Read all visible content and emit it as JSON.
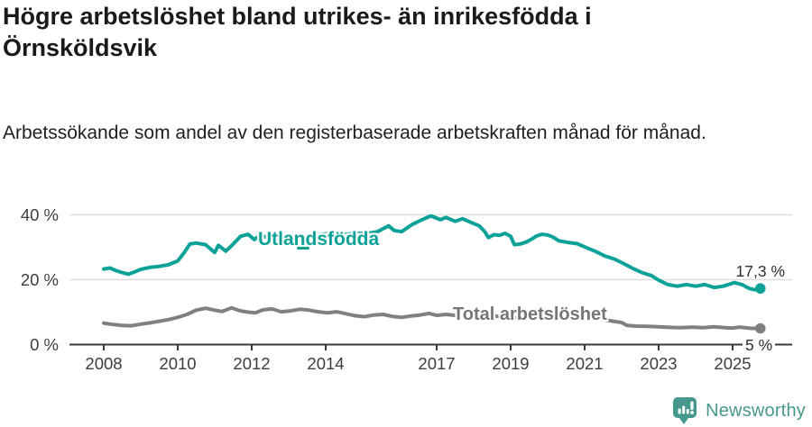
{
  "header": {
    "title": "Högre arbetslöshet bland utrikes- än inrikesfödda i Örnsköldsvik",
    "subtitle": "Arbetssökande som andel av den registerbaserade arbetskraften månad för månad."
  },
  "footer": {
    "brand": "Newsworthy"
  },
  "colors": {
    "foreign_line": "#0da298",
    "total_line": "#808080",
    "total_label_text": "#757575",
    "value_label_text": "#2f2f2f",
    "grid_line": "#dedede",
    "axis_line": "#3a3a3a",
    "axis_text": "#3d3d3d",
    "brand_teal": "#47988c",
    "title_text": "#1a1a1a"
  },
  "chart_data": {
    "type": "line",
    "title": "Högre arbetslöshet bland utrikes- än inrikesfödda i Örnsköldsvik",
    "subtitle": "Arbetssökande som andel av den registerbaserade arbetskraften månad för månad.",
    "xlabel": "",
    "ylabel": "",
    "xlim": [
      2007.1,
      2026.9
    ],
    "ylim": [
      0,
      44
    ],
    "grid": "horizontal",
    "legend_position": "inline-labels",
    "x_ticks": [
      2008,
      2010,
      2012,
      2014,
      2017,
      2019,
      2021,
      2023,
      2025
    ],
    "y_ticks": [
      {
        "value": 0,
        "label": "0 %"
      },
      {
        "value": 20,
        "label": "20 %"
      },
      {
        "value": 40,
        "label": "40 %"
      }
    ],
    "series": [
      {
        "name": "Utlandsfödda",
        "end_label": "17,3 %",
        "end_value": 17.3,
        "color_key": "foreign_line",
        "points": [
          [
            2008.0,
            23.3
          ],
          [
            2008.17,
            23.6
          ],
          [
            2008.33,
            22.8
          ],
          [
            2008.5,
            22.2
          ],
          [
            2008.67,
            21.7
          ],
          [
            2008.83,
            22.4
          ],
          [
            2009.0,
            23.2
          ],
          [
            2009.25,
            23.8
          ],
          [
            2009.5,
            24.1
          ],
          [
            2009.75,
            24.6
          ],
          [
            2010.0,
            25.8
          ],
          [
            2010.17,
            28.3
          ],
          [
            2010.33,
            31.0
          ],
          [
            2010.5,
            31.3
          ],
          [
            2010.75,
            30.8
          ],
          [
            2011.0,
            28.4
          ],
          [
            2011.1,
            30.6
          ],
          [
            2011.3,
            28.8
          ],
          [
            2011.5,
            31.0
          ],
          [
            2011.7,
            33.4
          ],
          [
            2011.9,
            34.0
          ],
          [
            2012.07,
            32.4
          ],
          [
            2012.2,
            33.5
          ],
          [
            2012.5,
            33.0
          ],
          [
            2012.75,
            33.6
          ],
          [
            2013.0,
            33.2
          ],
          [
            2013.3,
            33.8
          ],
          [
            2013.6,
            33.4
          ],
          [
            2013.9,
            34.0
          ],
          [
            2014.2,
            34.3
          ],
          [
            2014.5,
            33.9
          ],
          [
            2014.8,
            34.4
          ],
          [
            2015.1,
            34.2
          ],
          [
            2015.4,
            34.8
          ],
          [
            2015.7,
            36.6
          ],
          [
            2015.85,
            35.2
          ],
          [
            2016.05,
            34.8
          ],
          [
            2016.35,
            37.1
          ],
          [
            2016.7,
            39.0
          ],
          [
            2016.85,
            39.7
          ],
          [
            2017.1,
            38.5
          ],
          [
            2017.25,
            39.2
          ],
          [
            2017.5,
            38.0
          ],
          [
            2017.7,
            38.8
          ],
          [
            2017.9,
            37.8
          ],
          [
            2018.15,
            36.6
          ],
          [
            2018.3,
            34.8
          ],
          [
            2018.4,
            33.0
          ],
          [
            2018.55,
            33.9
          ],
          [
            2018.7,
            33.7
          ],
          [
            2018.85,
            34.3
          ],
          [
            2019.0,
            33.4
          ],
          [
            2019.1,
            30.8
          ],
          [
            2019.25,
            31.0
          ],
          [
            2019.4,
            31.5
          ],
          [
            2019.55,
            32.4
          ],
          [
            2019.7,
            33.5
          ],
          [
            2019.85,
            34.0
          ],
          [
            2020.0,
            33.8
          ],
          [
            2020.15,
            33.1
          ],
          [
            2020.3,
            32.0
          ],
          [
            2020.55,
            31.5
          ],
          [
            2020.8,
            31.1
          ],
          [
            2021.0,
            30.1
          ],
          [
            2021.3,
            28.7
          ],
          [
            2021.55,
            27.3
          ],
          [
            2021.8,
            26.4
          ],
          [
            2022.05,
            25.0
          ],
          [
            2022.3,
            23.5
          ],
          [
            2022.55,
            22.2
          ],
          [
            2022.8,
            21.3
          ],
          [
            2023.0,
            19.9
          ],
          [
            2023.25,
            18.5
          ],
          [
            2023.5,
            18.0
          ],
          [
            2023.75,
            18.5
          ],
          [
            2024.0,
            18.0
          ],
          [
            2024.25,
            18.5
          ],
          [
            2024.5,
            17.6
          ],
          [
            2024.75,
            18.0
          ],
          [
            2025.05,
            19.1
          ],
          [
            2025.25,
            18.5
          ],
          [
            2025.45,
            17.3
          ],
          [
            2025.6,
            16.9
          ],
          [
            2025.75,
            17.3
          ]
        ]
      },
      {
        "name": "Total arbetslöshet",
        "end_label": "5 %",
        "end_value": 5.0,
        "color_key": "total_line",
        "points": [
          [
            2008.0,
            6.6
          ],
          [
            2008.25,
            6.2
          ],
          [
            2008.5,
            5.9
          ],
          [
            2008.75,
            5.8
          ],
          [
            2009.0,
            6.3
          ],
          [
            2009.25,
            6.7
          ],
          [
            2009.5,
            7.2
          ],
          [
            2009.75,
            7.7
          ],
          [
            2010.0,
            8.4
          ],
          [
            2010.25,
            9.3
          ],
          [
            2010.5,
            10.6
          ],
          [
            2010.75,
            11.2
          ],
          [
            2011.0,
            10.6
          ],
          [
            2011.2,
            10.2
          ],
          [
            2011.45,
            11.3
          ],
          [
            2011.7,
            10.4
          ],
          [
            2011.9,
            10.0
          ],
          [
            2012.1,
            9.8
          ],
          [
            2012.3,
            10.7
          ],
          [
            2012.55,
            11.0
          ],
          [
            2012.8,
            10.1
          ],
          [
            2013.05,
            10.4
          ],
          [
            2013.3,
            10.9
          ],
          [
            2013.55,
            10.6
          ],
          [
            2013.8,
            10.1
          ],
          [
            2014.05,
            9.8
          ],
          [
            2014.3,
            10.1
          ],
          [
            2014.55,
            9.5
          ],
          [
            2014.8,
            8.9
          ],
          [
            2015.05,
            8.6
          ],
          [
            2015.3,
            9.1
          ],
          [
            2015.55,
            9.3
          ],
          [
            2015.8,
            8.7
          ],
          [
            2016.05,
            8.4
          ],
          [
            2016.3,
            8.8
          ],
          [
            2016.55,
            9.1
          ],
          [
            2016.8,
            9.6
          ],
          [
            2017.0,
            9.0
          ],
          [
            2017.25,
            9.3
          ],
          [
            2017.5,
            9.0
          ],
          [
            2018.0,
            8.7
          ],
          [
            2018.5,
            8.9
          ],
          [
            2019.0,
            8.3
          ],
          [
            2019.5,
            8.6
          ],
          [
            2020.0,
            8.4
          ],
          [
            2020.4,
            9.3
          ],
          [
            2020.8,
            9.0
          ],
          [
            2021.2,
            8.2
          ],
          [
            2021.6,
            7.5
          ],
          [
            2022.0,
            6.8
          ],
          [
            2022.15,
            5.9
          ],
          [
            2022.4,
            5.7
          ],
          [
            2022.7,
            5.6
          ],
          [
            2023.0,
            5.5
          ],
          [
            2023.3,
            5.3
          ],
          [
            2023.6,
            5.2
          ],
          [
            2023.9,
            5.4
          ],
          [
            2024.2,
            5.2
          ],
          [
            2024.5,
            5.5
          ],
          [
            2024.8,
            5.2
          ],
          [
            2025.0,
            5.1
          ],
          [
            2025.2,
            5.4
          ],
          [
            2025.5,
            5.0
          ],
          [
            2025.75,
            5.0
          ]
        ]
      }
    ]
  }
}
